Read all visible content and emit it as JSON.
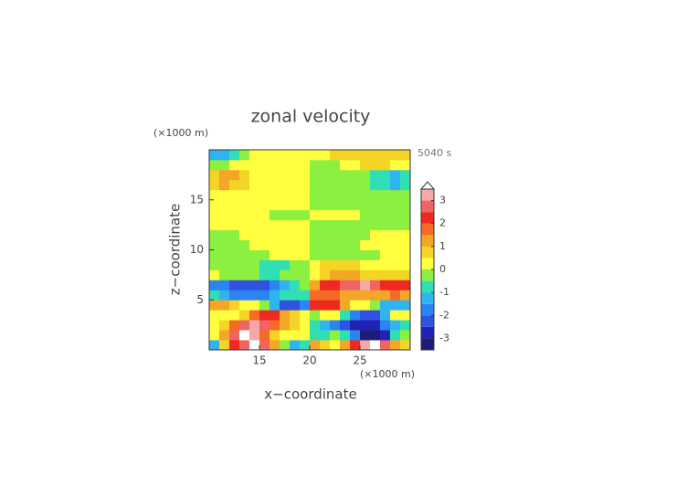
{
  "chart_data": {
    "type": "contour",
    "title": "zonal velocity",
    "time_label": "5040 s",
    "x_label": "x−coordinate",
    "y_label": "z−coordinate",
    "x_unit": "(×1000 m)",
    "y_unit": "(×1000 m)",
    "xlim": [
      10,
      30
    ],
    "ylim": [
      0,
      20
    ],
    "xticks": [
      15,
      20,
      25
    ],
    "yticks": [
      5,
      10,
      15
    ],
    "x": [
      10.5,
      11.5,
      12.5,
      13.5,
      14.5,
      15.5,
      16.5,
      17.5,
      18.5,
      19.5,
      20.5,
      21.5,
      22.5,
      23.5,
      24.5,
      25.5,
      26.5,
      27.5,
      28.5,
      29.5
    ],
    "y": [
      0.5,
      1.5,
      2.5,
      3.5,
      4.5,
      5.5,
      6.5,
      7.5,
      8.5,
      9.5,
      10.5,
      11.5,
      12.5,
      13.5,
      14.5,
      15.5,
      16.5,
      17.5,
      18.5,
      19.5
    ],
    "z": [
      [
        -1.2,
        0.9,
        2.2,
        2.8,
        3.7,
        2.6,
        1.0,
        -0.5,
        -1.2,
        -0.8,
        1.2,
        0.8,
        0.4,
        1.2,
        2.2,
        3.0,
        3.6,
        2.8,
        1.4,
        0.8
      ],
      [
        0.3,
        1.0,
        2.6,
        3.6,
        3.4,
        1.8,
        0.8,
        0.3,
        0.2,
        0.1,
        -0.8,
        -0.6,
        -0.4,
        -0.8,
        -1.6,
        -3.2,
        -3.4,
        -2.6,
        -0.9,
        -0.4
      ],
      [
        0.2,
        0.6,
        1.5,
        2.6,
        3.0,
        2.5,
        1.6,
        1.0,
        0.6,
        0.3,
        -1.0,
        -1.5,
        -1.6,
        -2.2,
        -2.8,
        -3.0,
        -2.6,
        -1.8,
        -1.2,
        -0.8
      ],
      [
        0.3,
        0.3,
        0.4,
        0.9,
        1.6,
        2.2,
        2.1,
        1.4,
        0.6,
        0.2,
        -0.5,
        0.3,
        0.4,
        -0.8,
        -1.8,
        -2.2,
        -2.1,
        -1.3,
        0.2,
        0.3
      ],
      [
        1.0,
        1.1,
        0.7,
        0.3,
        0.2,
        -0.5,
        -1.5,
        -2.2,
        -2.4,
        -1.8,
        2.0,
        2.3,
        2.1,
        1.2,
        0.4,
        0.2,
        -0.5,
        -1.2,
        -1.5,
        -1.2
      ],
      [
        -1.0,
        -1.3,
        -1.6,
        -1.8,
        -1.9,
        -1.7,
        -1.3,
        -1.0,
        -0.8,
        -0.6,
        1.6,
        1.8,
        1.6,
        1.4,
        1.2,
        1.0,
        1.2,
        1.4,
        1.5,
        1.3
      ],
      [
        -1.7,
        -2.0,
        -2.3,
        -2.4,
        -2.3,
        -2.1,
        -1.8,
        -1.4,
        -1.0,
        -0.5,
        1.2,
        2.0,
        2.4,
        2.6,
        2.8,
        3.0,
        2.8,
        2.4,
        2.2,
        2.0
      ],
      [
        0.2,
        -0.2,
        -0.3,
        -0.4,
        -0.5,
        -0.6,
        -0.6,
        -0.5,
        -0.3,
        -0.2,
        0.4,
        0.9,
        1.0,
        1.1,
        1.0,
        0.9,
        0.8,
        0.7,
        0.6,
        0.6
      ],
      [
        -0.3,
        -0.3,
        -0.3,
        -0.3,
        -0.4,
        -0.7,
        -0.9,
        -0.8,
        -0.5,
        -0.2,
        0.3,
        0.6,
        0.8,
        0.9,
        0.7,
        0.4,
        0.3,
        0.3,
        0.3,
        0.3
      ],
      [
        -0.3,
        -0.3,
        -0.3,
        -0.3,
        -0.3,
        -0.2,
        0.2,
        0.3,
        0.3,
        0.2,
        -0.2,
        -0.3,
        -0.3,
        -0.3,
        -0.3,
        -0.3,
        -0.2,
        0.2,
        0.3,
        0.3
      ],
      [
        -0.3,
        -0.3,
        -0.3,
        -0.2,
        0.1,
        0.3,
        0.3,
        0.3,
        0.3,
        0.3,
        -0.3,
        -0.3,
        -0.3,
        -0.3,
        -0.2,
        0.1,
        0.3,
        0.3,
        0.3,
        0.3
      ],
      [
        -0.2,
        -0.2,
        -0.1,
        0.2,
        0.3,
        0.3,
        0.3,
        0.3,
        0.3,
        0.3,
        -0.3,
        -0.3,
        -0.3,
        -0.3,
        -0.3,
        -0.3,
        0.1,
        0.2,
        0.2,
        0.2
      ],
      [
        0.3,
        0.3,
        0.3,
        0.3,
        0.3,
        0.3,
        0.3,
        0.3,
        0.3,
        0.3,
        -0.3,
        -0.3,
        -0.3,
        -0.3,
        -0.3,
        -0.3,
        -0.3,
        -0.3,
        -0.3,
        -0.3
      ],
      [
        0.3,
        0.3,
        0.3,
        0.3,
        0.3,
        0.3,
        -0.2,
        -0.3,
        -0.3,
        -0.2,
        0.2,
        0.3,
        0.3,
        0.3,
        0.2,
        -0.3,
        -0.3,
        -0.3,
        -0.3,
        -0.3
      ],
      [
        0.3,
        0.3,
        0.3,
        0.3,
        0.3,
        0.3,
        0.3,
        0.3,
        0.3,
        0.3,
        -0.3,
        -0.3,
        -0.3,
        -0.3,
        -0.3,
        -0.3,
        -0.3,
        -0.3,
        -0.3,
        -0.3
      ],
      [
        0.3,
        0.4,
        0.4,
        0.3,
        0.3,
        0.3,
        0.3,
        0.3,
        0.3,
        0.3,
        -0.3,
        -0.3,
        -0.3,
        -0.3,
        -0.3,
        -0.3,
        -0.3,
        -0.4,
        -0.4,
        -0.3
      ],
      [
        0.7,
        1.0,
        0.9,
        0.5,
        0.3,
        0.3,
        0.3,
        0.3,
        0.3,
        0.3,
        -0.3,
        -0.3,
        -0.3,
        -0.3,
        -0.3,
        -0.4,
        -0.7,
        -1.0,
        -1.1,
        -0.7
      ],
      [
        0.8,
        1.1,
        1.0,
        0.6,
        0.3,
        0.3,
        0.3,
        0.3,
        0.3,
        0.3,
        -0.3,
        -0.3,
        -0.3,
        -0.3,
        -0.3,
        -0.4,
        -0.6,
        -0.9,
        -1.1,
        -0.8
      ],
      [
        -0.3,
        -0.2,
        0.1,
        0.2,
        0.3,
        0.3,
        0.3,
        0.3,
        0.3,
        0.3,
        -0.2,
        -0.2,
        -0.1,
        0.2,
        0.3,
        0.6,
        0.6,
        0.5,
        0.4,
        0.3
      ],
      [
        -1.3,
        -1.2,
        -0.8,
        -0.3,
        0.2,
        0.3,
        0.3,
        0.3,
        0.3,
        0.3,
        0.4,
        0.4,
        0.5,
        0.6,
        0.7,
        0.8,
        0.8,
        0.9,
        0.9,
        0.8
      ]
    ],
    "colorbar": {
      "levels": [
        -3.5,
        -3,
        -2.5,
        -2,
        -1.5,
        -1,
        -0.5,
        0,
        0.5,
        1,
        1.5,
        2,
        2.5,
        3,
        3.5
      ],
      "colors": [
        "#1c1c7a",
        "#2222b4",
        "#2f52e0",
        "#2a84f2",
        "#30b4f0",
        "#30e0b4",
        "#8cf040",
        "#ffff40",
        "#f4d424",
        "#f4a626",
        "#f46a26",
        "#ee2a20",
        "#f06464",
        "#f4a8a8"
      ],
      "extend_color": "#ffffff",
      "ticks": [
        -3,
        -2,
        -1,
        0,
        1,
        2,
        3
      ]
    }
  }
}
